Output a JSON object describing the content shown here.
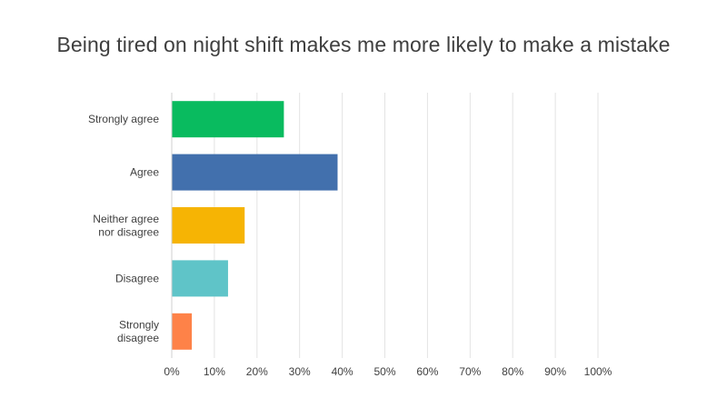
{
  "chart_data": {
    "type": "bar",
    "orientation": "horizontal",
    "title": "Being tired on night shift makes me more likely to make a mistake",
    "categories": [
      [
        "Strongly agree"
      ],
      [
        "Agree"
      ],
      [
        "Neither agree",
        "nor disagree"
      ],
      [
        "Disagree"
      ],
      [
        "Strongly",
        "disagree"
      ]
    ],
    "values": [
      26.2,
      38.8,
      17.0,
      13.1,
      4.6
    ],
    "colors": [
      "#09bb5f",
      "#4270ad",
      "#f6b404",
      "#5fc4c8",
      "#fe8248"
    ],
    "xlim": [
      0,
      100
    ],
    "ticks": [
      "0%",
      "10%",
      "20%",
      "30%",
      "40%",
      "50%",
      "60%",
      "70%",
      "80%",
      "90%",
      "100%"
    ],
    "grid": true,
    "legend": "none"
  }
}
